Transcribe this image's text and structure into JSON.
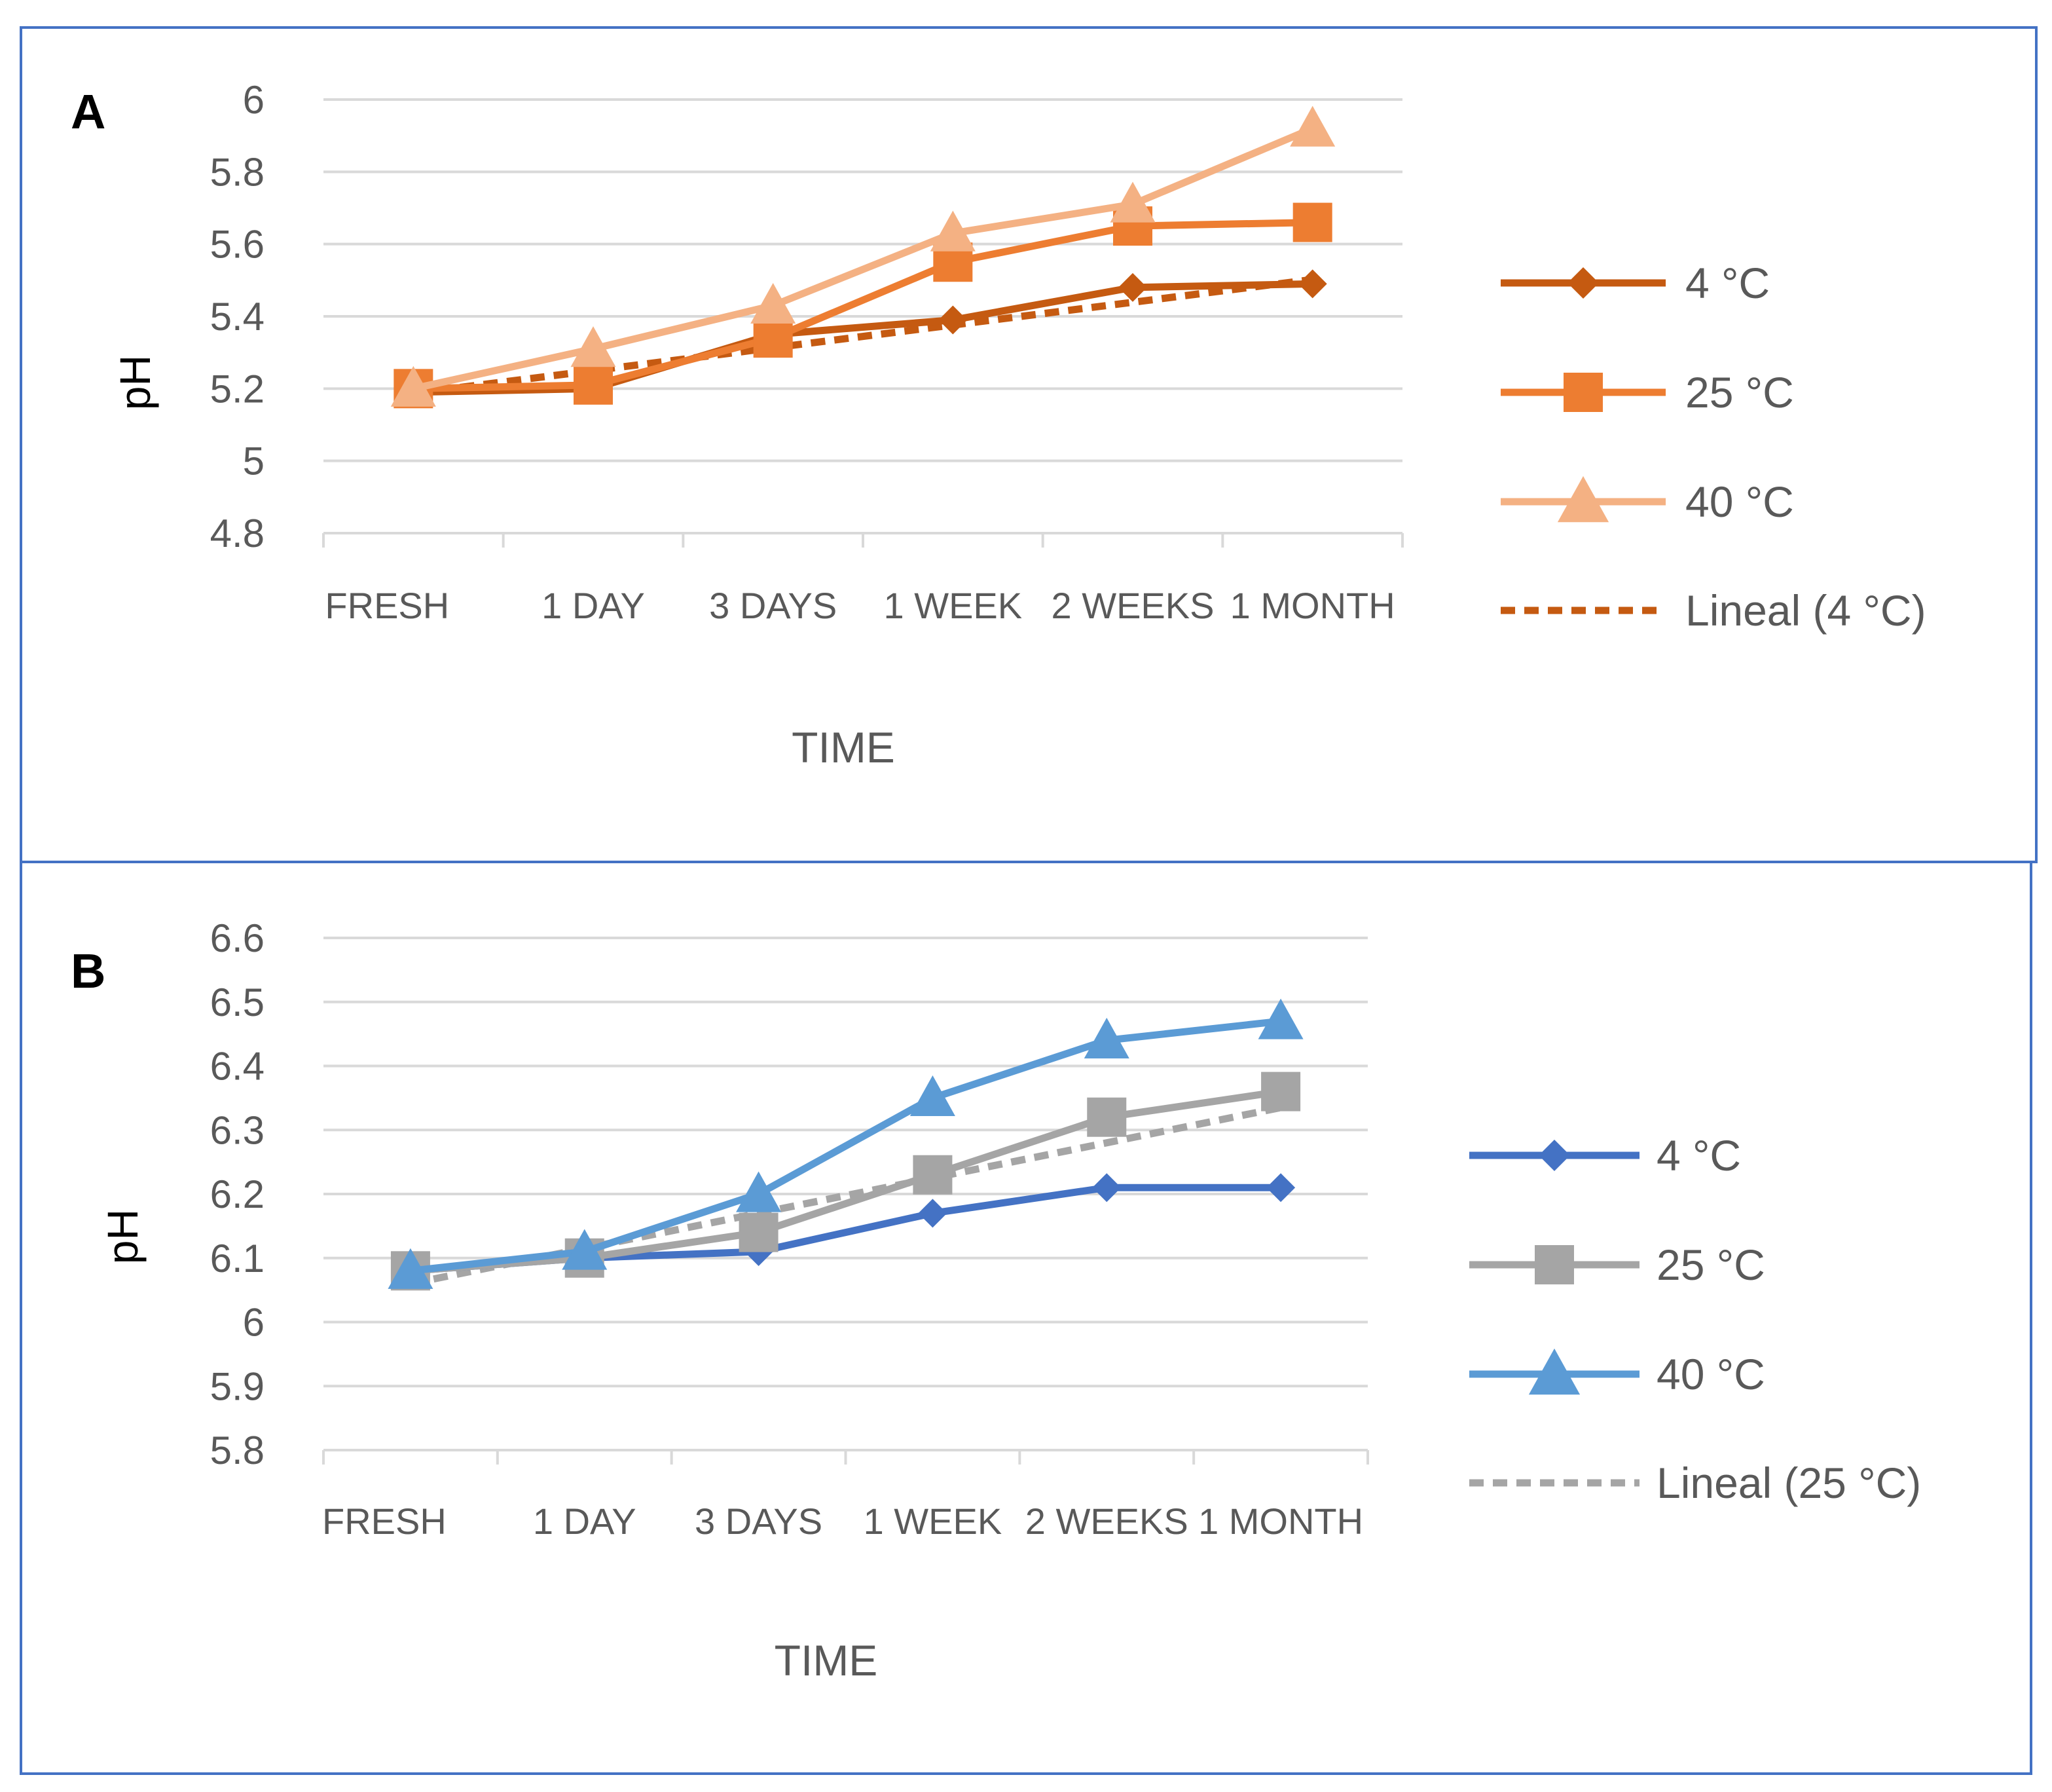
{
  "chart_data": [
    {
      "type": "line",
      "panel_label": "A",
      "title": "",
      "xlabel": "TIME",
      "ylabel": "pH",
      "ylim": [
        4.8,
        6
      ],
      "ytick_step": 0.2,
      "yticks": [
        "4.8",
        "5",
        "5.2",
        "5.4",
        "5.6",
        "5.8",
        "6"
      ],
      "categories": [
        "FRESH",
        "1 DAY",
        "3 DAYS",
        "1 WEEK",
        "2 WEEKS",
        "1 MONTH"
      ],
      "grid": true,
      "legend_position": "right",
      "series": [
        {
          "name": "4 °C",
          "values": [
            5.19,
            5.2,
            5.35,
            5.39,
            5.48,
            5.49
          ],
          "color": "#c55a11",
          "marker": "diamond",
          "dashed": false
        },
        {
          "name": "25 °C",
          "values": [
            5.2,
            5.21,
            5.34,
            5.55,
            5.65,
            5.66
          ],
          "color": "#ed7d31",
          "marker": "square",
          "dashed": false
        },
        {
          "name": "40 °C",
          "values": [
            5.2,
            5.31,
            5.43,
            5.63,
            5.71,
            5.92
          ],
          "color": "#f4b183",
          "marker": "triangle",
          "dashed": false
        },
        {
          "name": "Lineal (4 °C)",
          "values": [
            5.187,
            5.25,
            5.313,
            5.376,
            5.439,
            5.502
          ],
          "color": "#c55a11",
          "marker": "none",
          "dashed": true
        }
      ]
    },
    {
      "type": "line",
      "panel_label": "B",
      "title": "",
      "xlabel": "TIME",
      "ylabel": "pH",
      "ylim": [
        5.8,
        6.6
      ],
      "ytick_step": 0.1,
      "yticks": [
        "5.8",
        "5.9",
        "6",
        "6.1",
        "6.2",
        "6.3",
        "6.4",
        "6.5",
        "6.6"
      ],
      "categories": [
        "FRESH",
        "1 DAY",
        "3 DAYS",
        "1 WEEK",
        "2 WEEKS",
        "1 MONTH"
      ],
      "grid": true,
      "legend_position": "right",
      "series": [
        {
          "name": "4 °C",
          "values": [
            6.08,
            6.1,
            6.11,
            6.17,
            6.21,
            6.21
          ],
          "color": "#4472c4",
          "marker": "diamond",
          "dashed": false
        },
        {
          "name": "25 °C",
          "values": [
            6.08,
            6.1,
            6.14,
            6.23,
            6.32,
            6.36
          ],
          "color": "#a5a5a5",
          "marker": "square",
          "dashed": false
        },
        {
          "name": "40 °C",
          "values": [
            6.08,
            6.11,
            6.2,
            6.35,
            6.44,
            6.47
          ],
          "color": "#5b9bd5",
          "marker": "triangle",
          "dashed": false
        },
        {
          "name": "Lineal (25 °C)",
          "values": [
            6.06,
            6.115,
            6.17,
            6.225,
            6.28,
            6.335
          ],
          "color": "#a5a5a5",
          "marker": "none",
          "dashed": true
        }
      ]
    }
  ]
}
